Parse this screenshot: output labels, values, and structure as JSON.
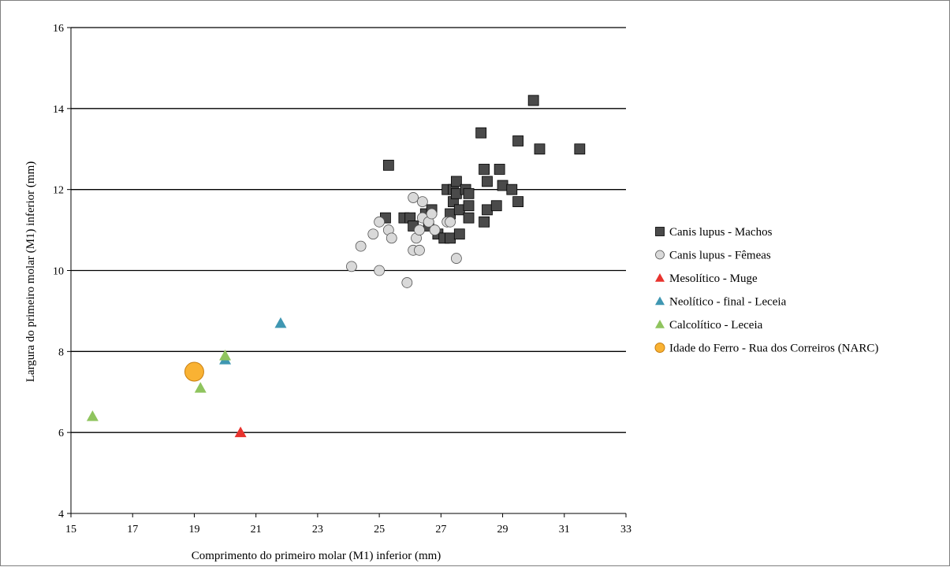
{
  "chart_data": {
    "type": "scatter",
    "title": "",
    "xlabel": "Comprimento do primeiro molar (M1) inferior (mm)",
    "ylabel": "Largura do primeiro molar (M1) inferior (mm)",
    "xlim": [
      15,
      33
    ],
    "ylim": [
      4,
      16
    ],
    "xticks": [
      "15",
      "17",
      "19",
      "21",
      "23",
      "25",
      "27",
      "29",
      "31",
      "33"
    ],
    "yticks": [
      "4",
      "6",
      "8",
      "10",
      "12",
      "14",
      "16"
    ],
    "grid": "horizontal",
    "legend_position": "right",
    "series": [
      {
        "name": "Canis lupus - Machos",
        "marker": "square",
        "color": "#4a4a4a",
        "points": [
          [
            25.3,
            12.6
          ],
          [
            25.2,
            11.3
          ],
          [
            25.8,
            11.3
          ],
          [
            26.0,
            11.3
          ],
          [
            26.1,
            11.1
          ],
          [
            26.5,
            11.4
          ],
          [
            26.7,
            11.5
          ],
          [
            26.6,
            11.1
          ],
          [
            26.9,
            10.9
          ],
          [
            27.1,
            10.8
          ],
          [
            27.3,
            10.8
          ],
          [
            27.2,
            12.0
          ],
          [
            27.3,
            11.4
          ],
          [
            27.4,
            11.7
          ],
          [
            27.4,
            12.0
          ],
          [
            27.5,
            11.9
          ],
          [
            27.5,
            12.2
          ],
          [
            27.6,
            11.5
          ],
          [
            27.8,
            12.0
          ],
          [
            27.9,
            11.9
          ],
          [
            27.9,
            11.6
          ],
          [
            27.9,
            11.3
          ],
          [
            27.6,
            10.9
          ],
          [
            28.3,
            13.4
          ],
          [
            28.4,
            12.5
          ],
          [
            28.5,
            12.2
          ],
          [
            28.5,
            11.5
          ],
          [
            28.4,
            11.2
          ],
          [
            28.8,
            11.6
          ],
          [
            28.9,
            12.5
          ],
          [
            29.0,
            12.1
          ],
          [
            29.3,
            12.0
          ],
          [
            29.5,
            11.7
          ],
          [
            29.5,
            13.2
          ],
          [
            30.0,
            14.2
          ],
          [
            30.2,
            13.0
          ],
          [
            31.5,
            13.0
          ]
        ]
      },
      {
        "name": "Canis lupus - Fêmeas",
        "marker": "circle",
        "color": "#d9d9d9",
        "points": [
          [
            24.1,
            10.1
          ],
          [
            24.4,
            10.6
          ],
          [
            24.8,
            10.9
          ],
          [
            25.0,
            11.2
          ],
          [
            25.0,
            10.0
          ],
          [
            25.3,
            11.0
          ],
          [
            25.4,
            10.8
          ],
          [
            25.9,
            9.7
          ],
          [
            26.1,
            11.8
          ],
          [
            26.1,
            10.5
          ],
          [
            26.2,
            10.8
          ],
          [
            26.3,
            10.5
          ],
          [
            26.3,
            11.0
          ],
          [
            26.4,
            11.3
          ],
          [
            26.4,
            11.7
          ],
          [
            26.6,
            11.2
          ],
          [
            26.7,
            11.4
          ],
          [
            26.8,
            11.0
          ],
          [
            27.2,
            11.2
          ],
          [
            27.3,
            11.2
          ],
          [
            27.5,
            10.3
          ]
        ]
      },
      {
        "name": "Mesolítico - Muge",
        "marker": "triangle",
        "color": "#e8332e",
        "points": [
          [
            20.5,
            6.0
          ]
        ]
      },
      {
        "name": "Neolítico - final - Leceia",
        "marker": "triangle",
        "color": "#3f97b2",
        "points": [
          [
            20.0,
            7.8
          ],
          [
            21.8,
            8.7
          ]
        ]
      },
      {
        "name": "Calcolítico - Leceia",
        "marker": "triangle",
        "color": "#8fc45e",
        "points": [
          [
            15.7,
            6.4
          ],
          [
            19.2,
            7.1
          ],
          [
            20.0,
            7.9
          ]
        ]
      },
      {
        "name": "Idade do Ferro - Rua dos Correiros (NARC)",
        "marker": "circle-large",
        "color": "#f9b233",
        "points": [
          [
            19.0,
            7.5
          ]
        ]
      }
    ]
  }
}
